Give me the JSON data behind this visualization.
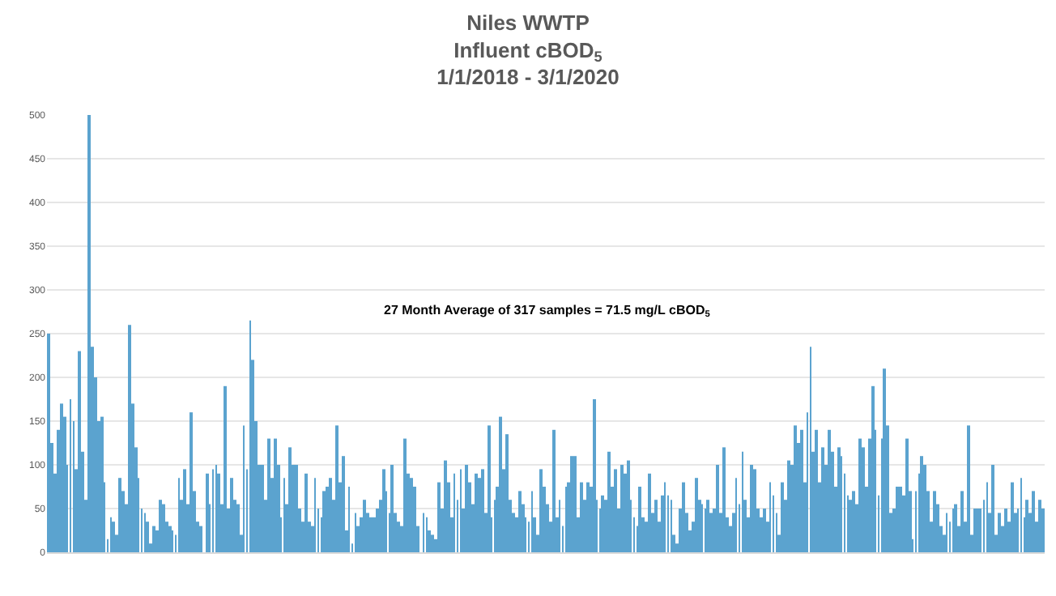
{
  "chart_data": {
    "type": "bar",
    "title": "Niles WWTP\nInfluent cBOD$_{5}$\n1/1/2018 - 3/1/2020",
    "annotations": [
      "27 Month Average of 317 samples = 71.5 mg/L cBOD$_{5}$"
    ],
    "categories": [
      null,
      null,
      null,
      null,
      null,
      null,
      null,
      null,
      null,
      null,
      null,
      null,
      null,
      null,
      null,
      null,
      null,
      null,
      null,
      null,
      null,
      null,
      null,
      null,
      null,
      null,
      null,
      null,
      null,
      null,
      null,
      null,
      null,
      null,
      null,
      null,
      null,
      null,
      null,
      null,
      null,
      null,
      null,
      null,
      null,
      null,
      null,
      null,
      null,
      null,
      null,
      null,
      null,
      null,
      null,
      null,
      null,
      null,
      null,
      null,
      null,
      null,
      null,
      null,
      null,
      null,
      null,
      null,
      null,
      null,
      null,
      null,
      null,
      null,
      null,
      null,
      null,
      null,
      null,
      null,
      null,
      null,
      null,
      null,
      null,
      null,
      null,
      null,
      null,
      null,
      null,
      null,
      null,
      null,
      null,
      null,
      null,
      null,
      null,
      null,
      null,
      null,
      null,
      null,
      null,
      null,
      null,
      null,
      null,
      null,
      null,
      null,
      null,
      null,
      null,
      null,
      null,
      null,
      null,
      null,
      null,
      null,
      null,
      null,
      null,
      null,
      null,
      null,
      null,
      null,
      null,
      null,
      null,
      null,
      null,
      null,
      null,
      null,
      null,
      null,
      null,
      null,
      null,
      null,
      null,
      null,
      null,
      null,
      null,
      null,
      null,
      null,
      null,
      null,
      null,
      null,
      null,
      null,
      null,
      null,
      null,
      null,
      null,
      null,
      null,
      null,
      null,
      null,
      null,
      null,
      null,
      null,
      null,
      null,
      null,
      null,
      null,
      null,
      null,
      null,
      null,
      null,
      null,
      null,
      null,
      null,
      null,
      null,
      null,
      null,
      null,
      null,
      null,
      null,
      null,
      null,
      null,
      null,
      null,
      null,
      null,
      null,
      null,
      null,
      null,
      null,
      null,
      null,
      null,
      null,
      null,
      null,
      null,
      null,
      null,
      null,
      null,
      null,
      null,
      null,
      null,
      null,
      null,
      null,
      null,
      null,
      null,
      null,
      null,
      null,
      null,
      null,
      null,
      null,
      null,
      null,
      null,
      null,
      null,
      null,
      null,
      null,
      null,
      null,
      null,
      null,
      null,
      null,
      null,
      null,
      null,
      null,
      null,
      null,
      null,
      null,
      null,
      null,
      null,
      null,
      null,
      null,
      null,
      null,
      null,
      null,
      null,
      null,
      null,
      null,
      null,
      null,
      null,
      null,
      null,
      null,
      null,
      null,
      null,
      null,
      null,
      null,
      null,
      null,
      null,
      null,
      null,
      null,
      null,
      null,
      null,
      null,
      null,
      null,
      null,
      null,
      null,
      null,
      null,
      null,
      null,
      null,
      null,
      null,
      null,
      null,
      null,
      null,
      null,
      null,
      null,
      null,
      null,
      null,
      null,
      null,
      null,
      null,
      null,
      null,
      null,
      null
    ],
    "values": [
      250,
      125,
      90,
      140,
      170,
      155,
      100,
      175,
      150,
      95,
      230,
      115,
      60,
      500,
      235,
      200,
      150,
      155,
      80,
      15,
      40,
      35,
      20,
      85,
      70,
      55,
      260,
      170,
      120,
      85,
      50,
      45,
      35,
      10,
      30,
      25,
      60,
      55,
      35,
      30,
      25,
      20,
      85,
      60,
      95,
      55,
      160,
      70,
      35,
      30,
      null,
      90,
      55,
      95,
      100,
      90,
      55,
      190,
      50,
      85,
      60,
      55,
      20,
      145,
      95,
      265,
      220,
      150,
      100,
      100,
      60,
      130,
      85,
      130,
      100,
      40,
      85,
      55,
      120,
      100,
      100,
      50,
      35,
      90,
      35,
      30,
      85,
      50,
      40,
      70,
      75,
      85,
      60,
      145,
      80,
      110,
      25,
      75,
      10,
      45,
      30,
      40,
      60,
      45,
      40,
      40,
      50,
      60,
      95,
      70,
      45,
      100,
      45,
      35,
      30,
      130,
      90,
      85,
      75,
      30,
      null,
      45,
      40,
      25,
      20,
      15,
      80,
      50,
      105,
      80,
      40,
      90,
      60,
      95,
      50,
      100,
      80,
      55,
      90,
      85,
      95,
      45,
      145,
      40,
      60,
      75,
      155,
      95,
      135,
      60,
      45,
      40,
      70,
      55,
      40,
      35,
      70,
      40,
      20,
      95,
      75,
      55,
      35,
      140,
      40,
      60,
      30,
      75,
      80,
      110,
      110,
      40,
      80,
      60,
      80,
      75,
      175,
      60,
      50,
      65,
      60,
      115,
      75,
      95,
      50,
      100,
      90,
      105,
      60,
      40,
      30,
      75,
      40,
      35,
      90,
      45,
      60,
      35,
      65,
      80,
      65,
      60,
      20,
      10,
      50,
      80,
      45,
      25,
      35,
      85,
      60,
      55,
      50,
      60,
      45,
      50,
      100,
      45,
      120,
      40,
      30,
      45,
      85,
      55,
      115,
      60,
      40,
      100,
      95,
      50,
      40,
      50,
      35,
      80,
      65,
      45,
      20,
      80,
      60,
      105,
      100,
      145,
      125,
      140,
      80,
      160,
      235,
      115,
      140,
      80,
      120,
      100,
      140,
      115,
      75,
      120,
      110,
      90,
      65,
      60,
      70,
      55,
      130,
      120,
      75,
      130,
      190,
      140,
      65,
      130,
      210,
      145,
      45,
      50,
      75,
      75,
      65,
      130,
      70,
      15,
      70,
      90,
      110,
      100,
      70,
      35,
      70,
      55,
      30,
      20,
      45,
      35,
      50,
      55,
      30,
      70,
      35,
      145,
      20,
      50,
      50,
      50,
      60,
      80,
      45,
      100,
      20,
      45,
      30,
      50,
      35,
      80,
      45,
      50,
      85,
      40,
      60,
      45,
      70,
      35,
      60,
      50
    ],
    "color": "#5ba3cf",
    "ylim": [
      0,
      500
    ],
    "yticks": [
      0,
      50,
      100,
      150,
      200,
      250,
      300,
      350,
      400,
      450,
      500
    ],
    "grid": "y"
  }
}
